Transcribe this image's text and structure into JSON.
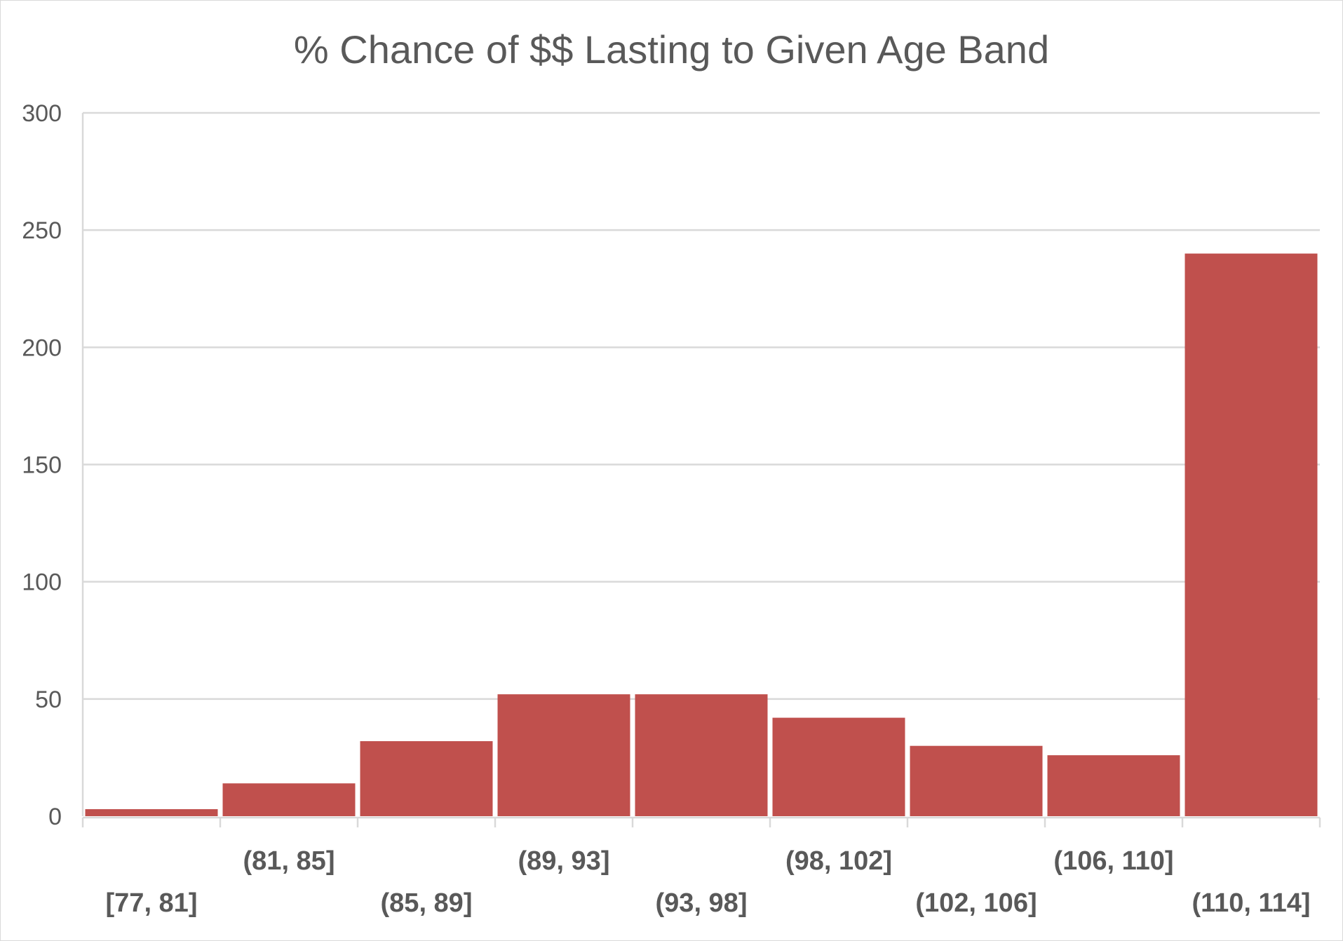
{
  "chart_data": {
    "type": "bar",
    "title": "% Chance of $$ Lasting to Given Age Band",
    "xlabel": "",
    "ylabel": "",
    "categories": [
      "[77, 81]",
      "(81, 85]",
      "(85, 89]",
      "(89, 93]",
      "(93, 98]",
      "(98, 102]",
      "(102, 106]",
      "(106, 110]",
      "(110, 114]"
    ],
    "values": [
      3,
      14,
      32,
      52,
      52,
      42,
      30,
      26,
      240
    ],
    "ylim": [
      0,
      300
    ],
    "yticks": [
      "0",
      "50",
      "100",
      "150",
      "200",
      "250",
      "300"
    ],
    "grid": true,
    "legend": "none",
    "bar_color": "#C0504D",
    "grid_color": "#D9D9D9",
    "axis_color": "#D9D9D9",
    "text_color": "#595959"
  }
}
